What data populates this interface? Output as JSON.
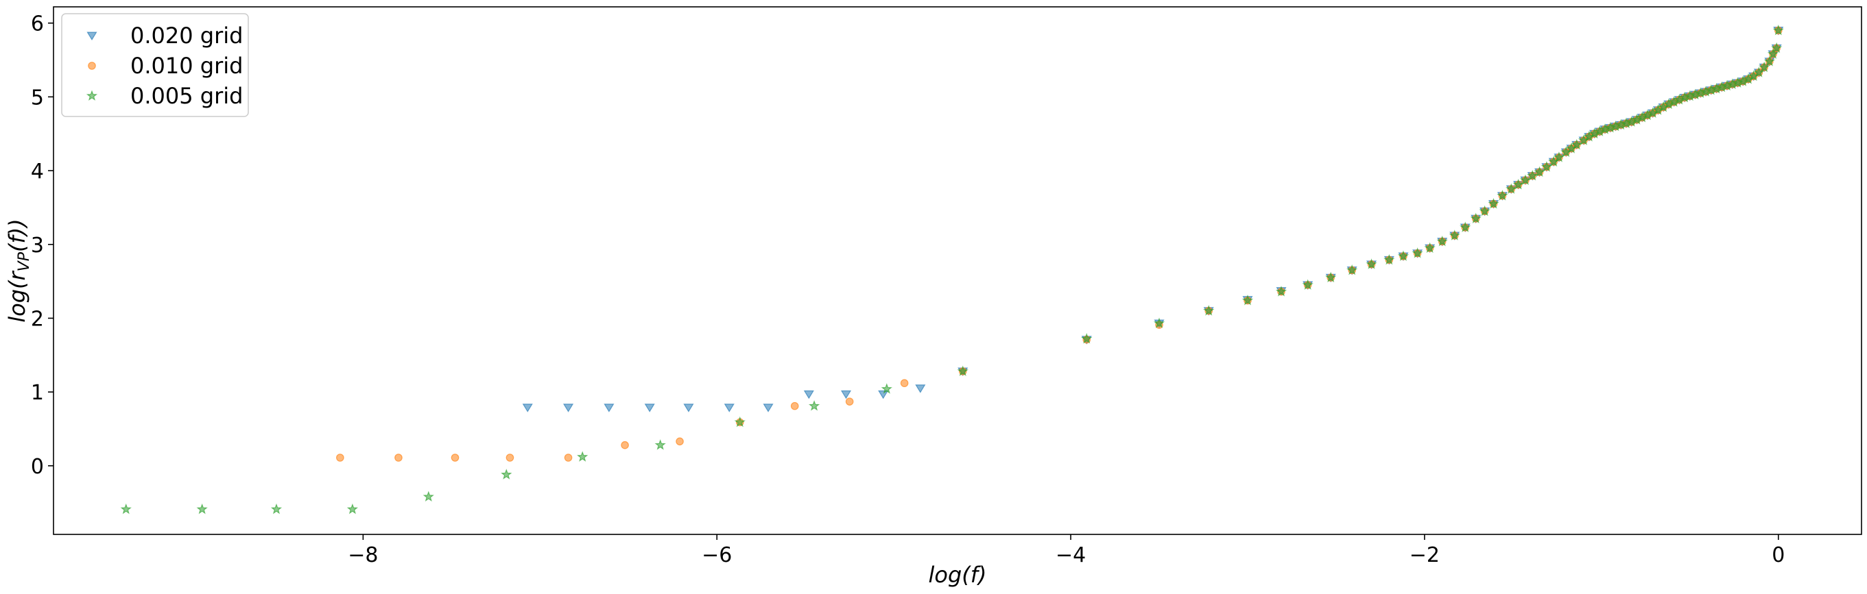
{
  "chart_data": {
    "type": "scatter",
    "xlabel": "log(f)",
    "ylabel_prefix": "log(r",
    "ylabel_sub": "VP",
    "ylabel_suffix": "(f))",
    "xlim": [
      -9.75,
      0.47
    ],
    "ylim": [
      -0.93,
      6.22
    ],
    "xticks": [
      -8,
      -6,
      -4,
      -2,
      0
    ],
    "yticks": [
      0,
      1,
      2,
      3,
      4,
      5,
      6
    ],
    "xtick_labels": [
      "−8",
      "−6",
      "−4",
      "−2",
      "0"
    ],
    "ytick_labels": [
      "0",
      "1",
      "2",
      "3",
      "4",
      "5",
      "6"
    ],
    "legend_position": "top-left",
    "grid": false,
    "series": [
      {
        "name": "0.020 grid",
        "marker": "triangle-down",
        "color": "#1f77b4",
        "points": [
          [
            -7.07,
            0.79
          ],
          [
            -6.84,
            0.79
          ],
          [
            -6.61,
            0.79
          ],
          [
            -6.38,
            0.79
          ],
          [
            -6.16,
            0.79
          ],
          [
            -5.93,
            0.79
          ],
          [
            -5.71,
            0.79
          ],
          [
            -5.48,
            0.97
          ],
          [
            -5.27,
            0.97
          ],
          [
            -5.06,
            0.97
          ],
          [
            -4.85,
            1.05
          ],
          [
            -4.61,
            1.28
          ],
          [
            -3.91,
            1.71
          ],
          [
            -3.5,
            1.93
          ],
          [
            -3.22,
            2.1
          ],
          [
            -3.0,
            2.25
          ],
          [
            -2.81,
            2.37
          ],
          [
            -2.66,
            2.45
          ],
          [
            -2.53,
            2.55
          ],
          [
            -2.41,
            2.65
          ],
          [
            -2.3,
            2.73
          ],
          [
            -2.2,
            2.79
          ],
          [
            -2.12,
            2.84
          ],
          [
            -2.04,
            2.88
          ],
          [
            -1.97,
            2.95
          ],
          [
            -1.9,
            3.04
          ],
          [
            -1.83,
            3.12
          ],
          [
            -1.77,
            3.23
          ],
          [
            -1.71,
            3.35
          ],
          [
            -1.66,
            3.45
          ],
          [
            -1.61,
            3.55
          ],
          [
            -1.56,
            3.66
          ],
          [
            -1.51,
            3.75
          ],
          [
            -1.47,
            3.81
          ],
          [
            -1.43,
            3.87
          ],
          [
            -1.39,
            3.93
          ],
          [
            -1.35,
            3.98
          ],
          [
            -1.31,
            4.05
          ],
          [
            -1.27,
            4.12
          ],
          [
            -1.24,
            4.18
          ],
          [
            -1.2,
            4.25
          ],
          [
            -1.17,
            4.3
          ],
          [
            -1.14,
            4.35
          ],
          [
            -1.1,
            4.41
          ],
          [
            -1.07,
            4.46
          ],
          [
            -1.04,
            4.5
          ],
          [
            -1.01,
            4.53
          ],
          [
            -0.98,
            4.56
          ],
          [
            -0.95,
            4.58
          ],
          [
            -0.92,
            4.6
          ],
          [
            -0.89,
            4.62
          ],
          [
            -0.86,
            4.64
          ],
          [
            -0.83,
            4.66
          ],
          [
            -0.8,
            4.69
          ],
          [
            -0.77,
            4.72
          ],
          [
            -0.74,
            4.75
          ],
          [
            -0.71,
            4.78
          ],
          [
            -0.68,
            4.82
          ],
          [
            -0.65,
            4.86
          ],
          [
            -0.62,
            4.9
          ],
          [
            -0.59,
            4.93
          ],
          [
            -0.56,
            4.96
          ],
          [
            -0.53,
            4.99
          ],
          [
            -0.5,
            5.01
          ],
          [
            -0.47,
            5.03
          ],
          [
            -0.44,
            5.05
          ],
          [
            -0.41,
            5.07
          ],
          [
            -0.38,
            5.09
          ],
          [
            -0.35,
            5.11
          ],
          [
            -0.32,
            5.13
          ],
          [
            -0.29,
            5.15
          ],
          [
            -0.26,
            5.17
          ],
          [
            -0.23,
            5.19
          ],
          [
            -0.2,
            5.21
          ],
          [
            -0.17,
            5.24
          ],
          [
            -0.14,
            5.28
          ],
          [
            -0.11,
            5.33
          ],
          [
            -0.08,
            5.4
          ],
          [
            -0.05,
            5.48
          ],
          [
            -0.03,
            5.58
          ],
          [
            -0.01,
            5.66
          ],
          [
            0.0,
            5.9
          ]
        ]
      },
      {
        "name": "0.010 grid",
        "marker": "circle",
        "color": "#ff7f0e",
        "points": [
          [
            -8.13,
            0.11
          ],
          [
            -7.8,
            0.11
          ],
          [
            -7.48,
            0.11
          ],
          [
            -7.17,
            0.11
          ],
          [
            -6.84,
            0.11
          ],
          [
            -6.52,
            0.28
          ],
          [
            -6.21,
            0.33
          ],
          [
            -5.87,
            0.59
          ],
          [
            -5.56,
            0.81
          ],
          [
            -5.25,
            0.87
          ],
          [
            -4.94,
            1.12
          ],
          [
            -4.61,
            1.28
          ],
          [
            -3.91,
            1.71
          ],
          [
            -3.5,
            1.91
          ],
          [
            -3.22,
            2.1
          ],
          [
            -3.0,
            2.24
          ],
          [
            -2.81,
            2.36
          ],
          [
            -2.66,
            2.45
          ],
          [
            -2.53,
            2.55
          ],
          [
            -2.41,
            2.65
          ],
          [
            -2.3,
            2.73
          ],
          [
            -2.2,
            2.79
          ],
          [
            -2.12,
            2.84
          ],
          [
            -2.04,
            2.88
          ],
          [
            -1.97,
            2.95
          ],
          [
            -1.9,
            3.04
          ],
          [
            -1.83,
            3.12
          ],
          [
            -1.77,
            3.23
          ],
          [
            -1.71,
            3.35
          ],
          [
            -1.66,
            3.45
          ],
          [
            -1.61,
            3.55
          ],
          [
            -1.56,
            3.66
          ],
          [
            -1.51,
            3.75
          ],
          [
            -1.47,
            3.81
          ],
          [
            -1.43,
            3.87
          ],
          [
            -1.39,
            3.93
          ],
          [
            -1.35,
            3.98
          ],
          [
            -1.31,
            4.05
          ],
          [
            -1.27,
            4.12
          ],
          [
            -1.24,
            4.18
          ],
          [
            -1.2,
            4.25
          ],
          [
            -1.17,
            4.3
          ],
          [
            -1.14,
            4.35
          ],
          [
            -1.1,
            4.41
          ],
          [
            -1.07,
            4.46
          ],
          [
            -1.04,
            4.5
          ],
          [
            -1.01,
            4.53
          ],
          [
            -0.98,
            4.56
          ],
          [
            -0.95,
            4.58
          ],
          [
            -0.92,
            4.6
          ],
          [
            -0.89,
            4.62
          ],
          [
            -0.86,
            4.64
          ],
          [
            -0.83,
            4.66
          ],
          [
            -0.8,
            4.69
          ],
          [
            -0.77,
            4.72
          ],
          [
            -0.74,
            4.75
          ],
          [
            -0.71,
            4.78
          ],
          [
            -0.68,
            4.82
          ],
          [
            -0.65,
            4.86
          ],
          [
            -0.62,
            4.9
          ],
          [
            -0.59,
            4.93
          ],
          [
            -0.56,
            4.96
          ],
          [
            -0.53,
            4.99
          ],
          [
            -0.5,
            5.01
          ],
          [
            -0.47,
            5.03
          ],
          [
            -0.44,
            5.05
          ],
          [
            -0.41,
            5.07
          ],
          [
            -0.38,
            5.09
          ],
          [
            -0.35,
            5.11
          ],
          [
            -0.32,
            5.13
          ],
          [
            -0.29,
            5.15
          ],
          [
            -0.26,
            5.17
          ],
          [
            -0.23,
            5.19
          ],
          [
            -0.2,
            5.21
          ],
          [
            -0.17,
            5.24
          ],
          [
            -0.14,
            5.28
          ],
          [
            -0.11,
            5.33
          ],
          [
            -0.08,
            5.4
          ],
          [
            -0.05,
            5.48
          ],
          [
            -0.03,
            5.58
          ],
          [
            -0.01,
            5.66
          ],
          [
            0.0,
            5.9
          ]
        ]
      },
      {
        "name": "0.005 grid",
        "marker": "star",
        "color": "#2ca02c",
        "points": [
          [
            -9.34,
            -0.59
          ],
          [
            -8.91,
            -0.59
          ],
          [
            -8.49,
            -0.59
          ],
          [
            -8.06,
            -0.59
          ],
          [
            -7.63,
            -0.42
          ],
          [
            -7.19,
            -0.12
          ],
          [
            -6.76,
            0.12
          ],
          [
            -6.32,
            0.28
          ],
          [
            -5.87,
            0.59
          ],
          [
            -5.45,
            0.81
          ],
          [
            -5.04,
            1.04
          ],
          [
            -4.61,
            1.28
          ],
          [
            -3.91,
            1.72
          ],
          [
            -3.5,
            1.93
          ],
          [
            -3.22,
            2.1
          ],
          [
            -3.0,
            2.24
          ],
          [
            -2.81,
            2.36
          ],
          [
            -2.66,
            2.45
          ],
          [
            -2.53,
            2.55
          ],
          [
            -2.41,
            2.65
          ],
          [
            -2.3,
            2.73
          ],
          [
            -2.2,
            2.79
          ],
          [
            -2.12,
            2.84
          ],
          [
            -2.04,
            2.88
          ],
          [
            -1.97,
            2.95
          ],
          [
            -1.9,
            3.04
          ],
          [
            -1.83,
            3.12
          ],
          [
            -1.77,
            3.23
          ],
          [
            -1.71,
            3.35
          ],
          [
            -1.66,
            3.45
          ],
          [
            -1.61,
            3.55
          ],
          [
            -1.56,
            3.66
          ],
          [
            -1.51,
            3.75
          ],
          [
            -1.47,
            3.81
          ],
          [
            -1.43,
            3.87
          ],
          [
            -1.39,
            3.93
          ],
          [
            -1.35,
            3.98
          ],
          [
            -1.31,
            4.05
          ],
          [
            -1.27,
            4.12
          ],
          [
            -1.24,
            4.18
          ],
          [
            -1.2,
            4.25
          ],
          [
            -1.17,
            4.3
          ],
          [
            -1.14,
            4.35
          ],
          [
            -1.1,
            4.41
          ],
          [
            -1.07,
            4.46
          ],
          [
            -1.04,
            4.5
          ],
          [
            -1.01,
            4.53
          ],
          [
            -0.98,
            4.56
          ],
          [
            -0.95,
            4.58
          ],
          [
            -0.92,
            4.6
          ],
          [
            -0.89,
            4.62
          ],
          [
            -0.86,
            4.64
          ],
          [
            -0.83,
            4.66
          ],
          [
            -0.8,
            4.69
          ],
          [
            -0.77,
            4.72
          ],
          [
            -0.74,
            4.75
          ],
          [
            -0.71,
            4.78
          ],
          [
            -0.68,
            4.82
          ],
          [
            -0.65,
            4.86
          ],
          [
            -0.62,
            4.9
          ],
          [
            -0.59,
            4.93
          ],
          [
            -0.56,
            4.96
          ],
          [
            -0.53,
            4.99
          ],
          [
            -0.5,
            5.01
          ],
          [
            -0.47,
            5.03
          ],
          [
            -0.44,
            5.05
          ],
          [
            -0.41,
            5.07
          ],
          [
            -0.38,
            5.09
          ],
          [
            -0.35,
            5.11
          ],
          [
            -0.32,
            5.13
          ],
          [
            -0.29,
            5.15
          ],
          [
            -0.26,
            5.17
          ],
          [
            -0.23,
            5.19
          ],
          [
            -0.2,
            5.21
          ],
          [
            -0.17,
            5.24
          ],
          [
            -0.14,
            5.28
          ],
          [
            -0.11,
            5.33
          ],
          [
            -0.08,
            5.4
          ],
          [
            -0.05,
            5.48
          ],
          [
            -0.03,
            5.58
          ],
          [
            -0.01,
            5.66
          ],
          [
            0.0,
            5.9
          ]
        ]
      }
    ]
  }
}
